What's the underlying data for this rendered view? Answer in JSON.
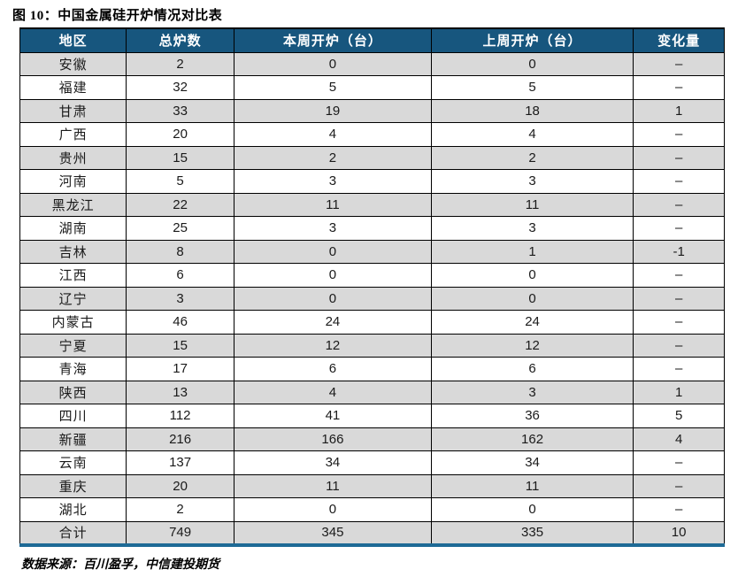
{
  "title": "图 10：中国金属硅开炉情况对比表",
  "source_note": "数据来源：百川盈孚，中信建投期货",
  "colors": {
    "header_bg": "#17567E",
    "stripe_gray": "#D9D9D9",
    "bottom_border_blue": "#1E6A96",
    "grid_line": "#000000"
  },
  "chart_data": {
    "type": "table",
    "title": "图 10：中国金属硅开炉情况对比表",
    "headers": [
      "地区",
      "总炉数",
      "本周开炉（台）",
      "上周开炉（台）",
      "变化量"
    ],
    "rows": [
      [
        "安徽",
        "2",
        "0",
        "0",
        "–"
      ],
      [
        "福建",
        "32",
        "5",
        "5",
        "–"
      ],
      [
        "甘肃",
        "33",
        "19",
        "18",
        "1"
      ],
      [
        "广西",
        "20",
        "4",
        "4",
        "–"
      ],
      [
        "贵州",
        "15",
        "2",
        "2",
        "–"
      ],
      [
        "河南",
        "5",
        "3",
        "3",
        "–"
      ],
      [
        "黑龙江",
        "22",
        "11",
        "11",
        "–"
      ],
      [
        "湖南",
        "25",
        "3",
        "3",
        "–"
      ],
      [
        "吉林",
        "8",
        "0",
        "1",
        "-1"
      ],
      [
        "江西",
        "6",
        "0",
        "0",
        "–"
      ],
      [
        "辽宁",
        "3",
        "0",
        "0",
        "–"
      ],
      [
        "内蒙古",
        "46",
        "24",
        "24",
        "–"
      ],
      [
        "宁夏",
        "15",
        "12",
        "12",
        "–"
      ],
      [
        "青海",
        "17",
        "6",
        "6",
        "–"
      ],
      [
        "陕西",
        "13",
        "4",
        "3",
        "1"
      ],
      [
        "四川",
        "112",
        "41",
        "36",
        "5"
      ],
      [
        "新疆",
        "216",
        "166",
        "162",
        "4"
      ],
      [
        "云南",
        "137",
        "34",
        "34",
        "–"
      ],
      [
        "重庆",
        "20",
        "11",
        "11",
        "–"
      ],
      [
        "湖北",
        "2",
        "0",
        "0",
        "–"
      ],
      [
        "合计",
        "749",
        "345",
        "335",
        "10"
      ]
    ]
  }
}
